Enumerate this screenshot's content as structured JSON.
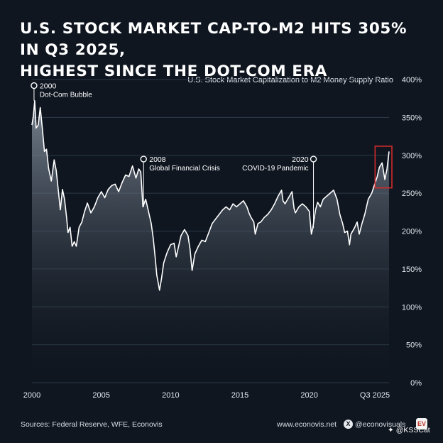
{
  "header": {
    "title_line1": "U.S. STOCK MARKET CAP-TO-M2 HITS 305% IN Q3 2025,",
    "title_line2": "HIGHEST SINCE THE DOT-COM ERA"
  },
  "chart_data": {
    "type": "area",
    "title": "U.S. Stock Market Capitalization to M2 Money Supply Ratio",
    "xlabel": "",
    "ylabel": "",
    "xlim": [
      2000,
      2025.75
    ],
    "ylim": [
      0,
      400
    ],
    "y_ticks": [
      0,
      50,
      100,
      150,
      200,
      250,
      300,
      350,
      400
    ],
    "y_tick_labels": [
      "0%",
      "50%",
      "100%",
      "150%",
      "200%",
      "250%",
      "300%",
      "350%",
      "400%"
    ],
    "x_ticks": [
      2000,
      2005,
      2010,
      2015,
      2020,
      2025
    ],
    "x_tick_labels": [
      "2000",
      "2005",
      "2010",
      "2015",
      "2020",
      "Q3 2025"
    ],
    "grid": true,
    "series": [
      {
        "name": "Market Cap to M2 (%)",
        "x": [
          2000,
          2000.1,
          2000.2,
          2000.3,
          2000.45,
          2000.6,
          2000.75,
          2000.9,
          2001.05,
          2001.2,
          2001.4,
          2001.6,
          2001.75,
          2001.9,
          2002.05,
          2002.2,
          2002.35,
          2002.5,
          2002.6,
          2002.75,
          2002.9,
          2003.05,
          2003.2,
          2003.4,
          2003.6,
          2003.8,
          2004,
          2004.25,
          2004.5,
          2004.75,
          2005,
          2005.25,
          2005.5,
          2005.75,
          2006,
          2006.25,
          2006.5,
          2006.75,
          2007,
          2007.25,
          2007.5,
          2007.7,
          2007.85,
          2008,
          2008.2,
          2008.4,
          2008.6,
          2008.75,
          2008.9,
          2009,
          2009.1,
          2009.2,
          2009.35,
          2009.5,
          2009.75,
          2010,
          2010.25,
          2010.4,
          2010.6,
          2010.75,
          2011,
          2011.25,
          2011.4,
          2011.55,
          2011.75,
          2012,
          2012.25,
          2012.5,
          2012.75,
          2013,
          2013.25,
          2013.5,
          2013.75,
          2014,
          2014.25,
          2014.5,
          2014.75,
          2015,
          2015.25,
          2015.5,
          2015.65,
          2015.8,
          2016,
          2016.1,
          2016.3,
          2016.5,
          2016.75,
          2017,
          2017.25,
          2017.5,
          2017.75,
          2018,
          2018.1,
          2018.25,
          2018.5,
          2018.75,
          2018.9,
          2019,
          2019.25,
          2019.5,
          2019.75,
          2020,
          2020.15,
          2020.25,
          2020.45,
          2020.6,
          2020.8,
          2021,
          2021.25,
          2021.5,
          2021.75,
          2022,
          2022.2,
          2022.4,
          2022.55,
          2022.75,
          2022.9,
          2023,
          2023.25,
          2023.45,
          2023.6,
          2023.8,
          2024,
          2024.25,
          2024.5,
          2024.75,
          2024.9,
          2025.05,
          2025.25,
          2025.45,
          2025.6,
          2025.75
        ],
        "values": [
          340,
          352,
          372,
          336,
          340,
          363,
          335,
          305,
          308,
          283,
          266,
          294,
          280,
          254,
          228,
          255,
          242,
          218,
          198,
          205,
          180,
          186,
          180,
          205,
          212,
          226,
          237,
          224,
          232,
          244,
          252,
          244,
          255,
          260,
          262,
          252,
          264,
          274,
          272,
          286,
          270,
          282,
          278,
          232,
          242,
          226,
          210,
          190,
          162,
          142,
          132,
          122,
          138,
          158,
          172,
          182,
          184,
          166,
          182,
          194,
          202,
          194,
          176,
          148,
          170,
          180,
          188,
          186,
          198,
          210,
          216,
          222,
          228,
          232,
          228,
          236,
          232,
          236,
          240,
          232,
          224,
          218,
          212,
          196,
          210,
          212,
          218,
          222,
          228,
          236,
          246,
          254,
          240,
          236,
          244,
          252,
          230,
          224,
          232,
          236,
          232,
          226,
          196,
          204,
          228,
          238,
          232,
          242,
          246,
          250,
          254,
          242,
          222,
          210,
          198,
          200,
          182,
          196,
          204,
          212,
          196,
          210,
          222,
          242,
          250,
          264,
          272,
          284,
          290,
          268,
          282,
          305
        ]
      }
    ],
    "annotations": [
      {
        "x": 2000.15,
        "y": 392,
        "year": "2000",
        "label": "Dot-Com Bubble"
      },
      {
        "x": 2008.05,
        "y": 295,
        "year": "2008",
        "label": "Global Financial Crisis"
      },
      {
        "x": 2020.3,
        "y": 295,
        "year": "2020",
        "label": "COVID-19 Pandemic"
      }
    ],
    "highlight": {
      "x_start": 2025.0,
      "x_end": 2025.7,
      "y_start": 257,
      "y_end": 312
    }
  },
  "footer": {
    "sources": "Sources: Federal Reserve, WFE, Econovis",
    "website": "www.econovis.net",
    "x_glyph": "X",
    "handle": "@econovisuals",
    "logo_text": "EV",
    "watermark": "✦ @KSSCat"
  },
  "colors": {
    "background": "#0f1620",
    "grid": "#2c3a4a",
    "line": "#ffffff",
    "area_top": "#8c98a6",
    "area_bottom": "#0f1620",
    "highlight": "#d22b2b"
  }
}
